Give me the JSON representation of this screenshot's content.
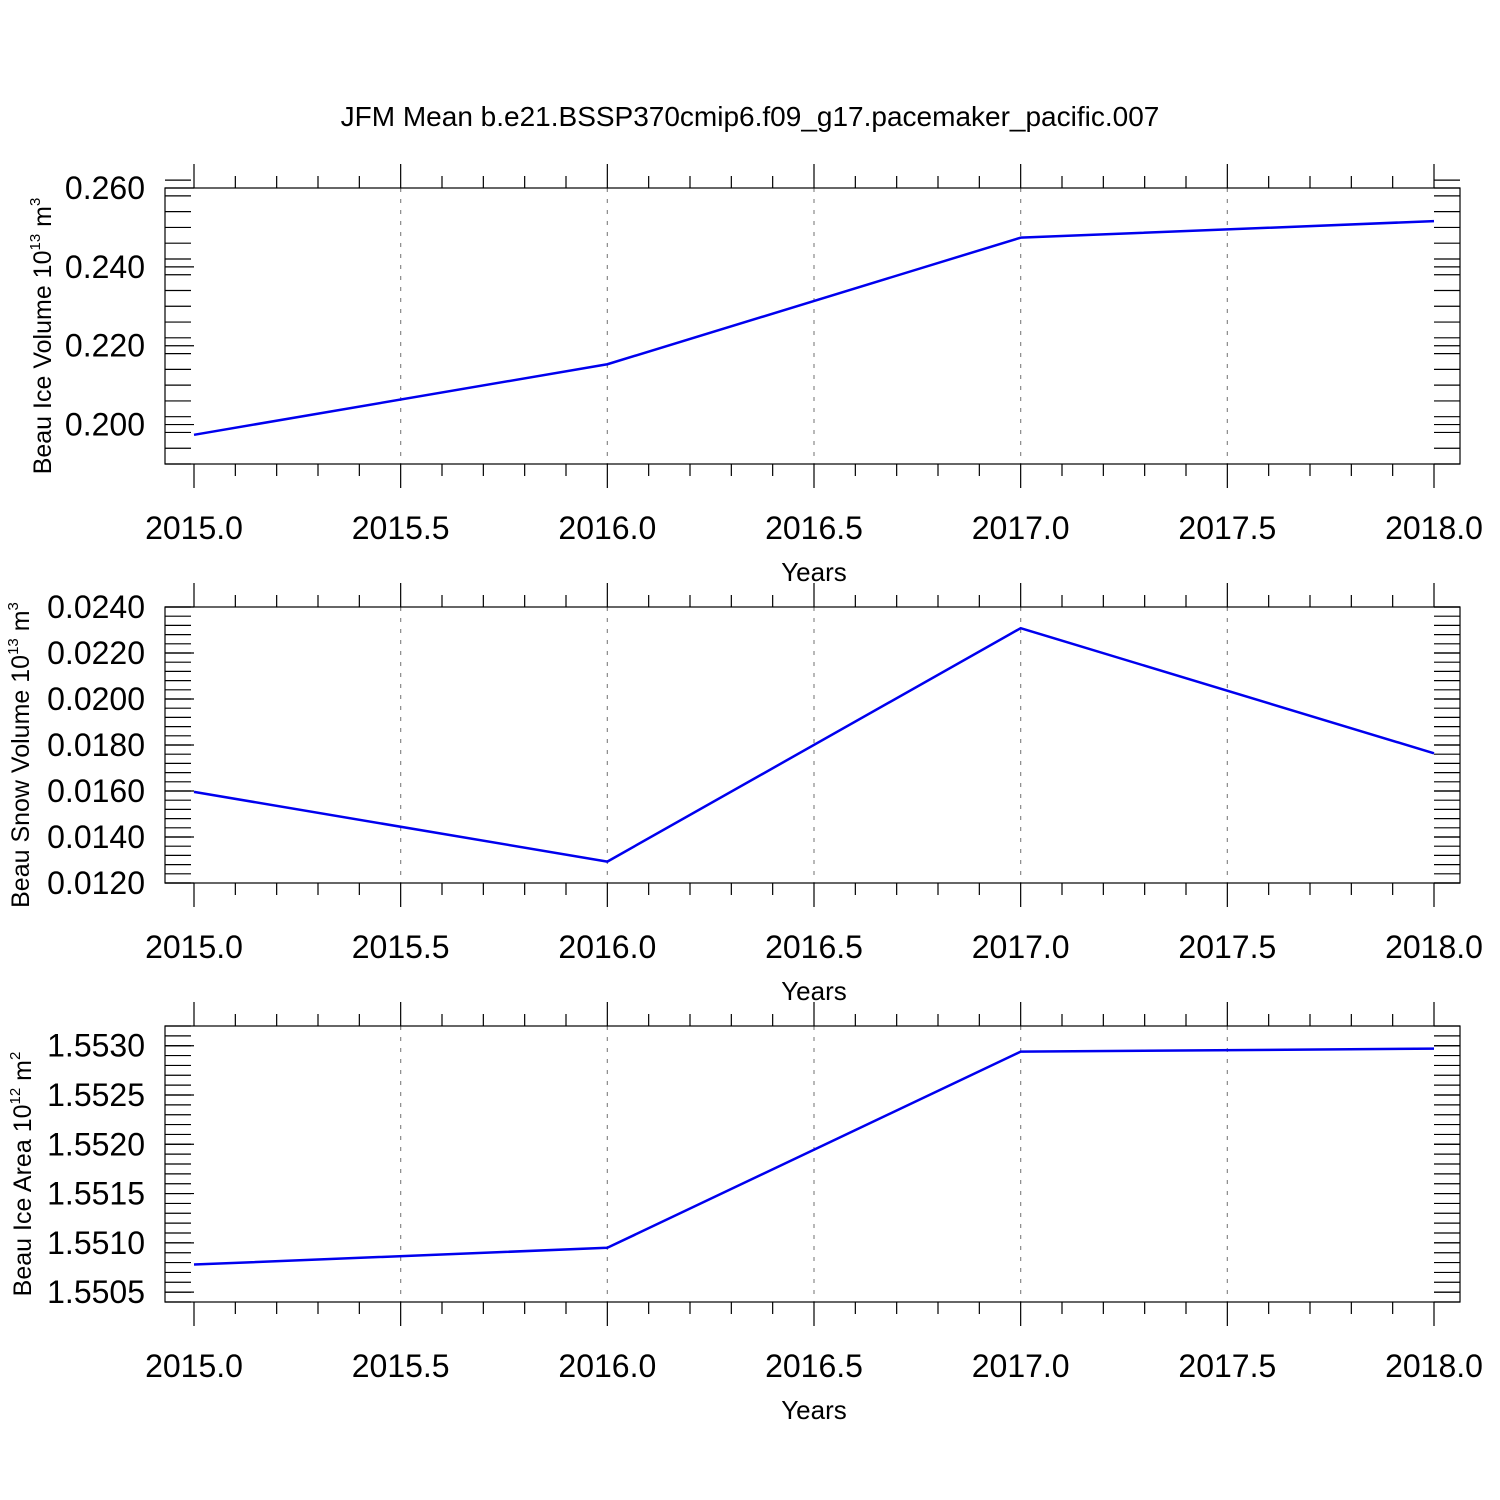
{
  "title": "JFM Mean b.e21.BSSP370cmip6.f09_g17.pacemaker_pacific.007",
  "colors": {
    "line": "#0000ee",
    "grid": "#888888",
    "axis": "#000000"
  },
  "chart_data": [
    {
      "type": "line",
      "xlabel": "Years",
      "ylabel": {
        "pre": "Beau Ice Volume 10",
        "sup1": "13",
        "mid": " m",
        "sup2": "3"
      },
      "xlim": [
        2015,
        2018
      ],
      "ylim": [
        0.19,
        0.26
      ],
      "x_ticks": [
        2015.0,
        2015.5,
        2016.0,
        2016.5,
        2017.0,
        2017.5,
        2018.0
      ],
      "x_tick_labels": [
        "2015.0",
        "2015.5",
        "2016.0",
        "2016.5",
        "2017.0",
        "2017.5",
        "2018.0"
      ],
      "y_ticks": [
        0.2,
        0.22,
        0.24,
        0.26
      ],
      "y_tick_labels": [
        "0.200",
        "0.220",
        "0.240",
        "0.260"
      ],
      "y_minor_step": 0.004,
      "grid": "x-dashed",
      "series": [
        {
          "x": [
            2015,
            2016,
            2017,
            2018
          ],
          "values": [
            0.1974,
            0.2153,
            0.2474,
            0.2516
          ]
        }
      ]
    },
    {
      "type": "line",
      "xlabel": "Years",
      "ylabel": {
        "pre": "Beau Snow Volume 10",
        "sup1": "13",
        "mid": " m",
        "sup2": "3"
      },
      "xlim": [
        2015,
        2018
      ],
      "ylim": [
        0.012,
        0.024
      ],
      "x_ticks": [
        2015.0,
        2015.5,
        2016.0,
        2016.5,
        2017.0,
        2017.5,
        2018.0
      ],
      "x_tick_labels": [
        "2015.0",
        "2015.5",
        "2016.0",
        "2016.5",
        "2017.0",
        "2017.5",
        "2018.0"
      ],
      "y_ticks": [
        0.012,
        0.014,
        0.016,
        0.018,
        0.02,
        0.022,
        0.024
      ],
      "y_tick_labels": [
        "0.0120",
        "0.0140",
        "0.0160",
        "0.0180",
        "0.0200",
        "0.0220",
        "0.0240"
      ],
      "y_minor_step": 0.0004,
      "grid": "x-dashed",
      "series": [
        {
          "x": [
            2015,
            2016,
            2017,
            2018
          ],
          "values": [
            0.01596,
            0.01293,
            0.02308,
            0.01764
          ]
        }
      ]
    },
    {
      "type": "line",
      "xlabel": "Years",
      "ylabel": {
        "pre": "Beau Ice Area 10",
        "sup1": "12",
        "mid": " m",
        "sup2": "2"
      },
      "xlim": [
        2015,
        2018
      ],
      "ylim": [
        1.5504,
        1.5532
      ],
      "x_ticks": [
        2015.0,
        2015.5,
        2016.0,
        2016.5,
        2017.0,
        2017.5,
        2018.0
      ],
      "x_tick_labels": [
        "2015.0",
        "2015.5",
        "2016.0",
        "2016.5",
        "2017.0",
        "2017.5",
        "2018.0"
      ],
      "y_ticks": [
        1.5505,
        1.551,
        1.5515,
        1.552,
        1.5525,
        1.553
      ],
      "y_tick_labels": [
        "1.5505",
        "1.5510",
        "1.5515",
        "1.5520",
        "1.5525",
        "1.5530"
      ],
      "y_minor_step": 0.0001,
      "grid": "x-dashed",
      "series": [
        {
          "x": [
            2015,
            2016,
            2017,
            2018
          ],
          "values": [
            1.55078,
            1.55095,
            1.55294,
            1.55297
          ]
        }
      ]
    }
  ]
}
